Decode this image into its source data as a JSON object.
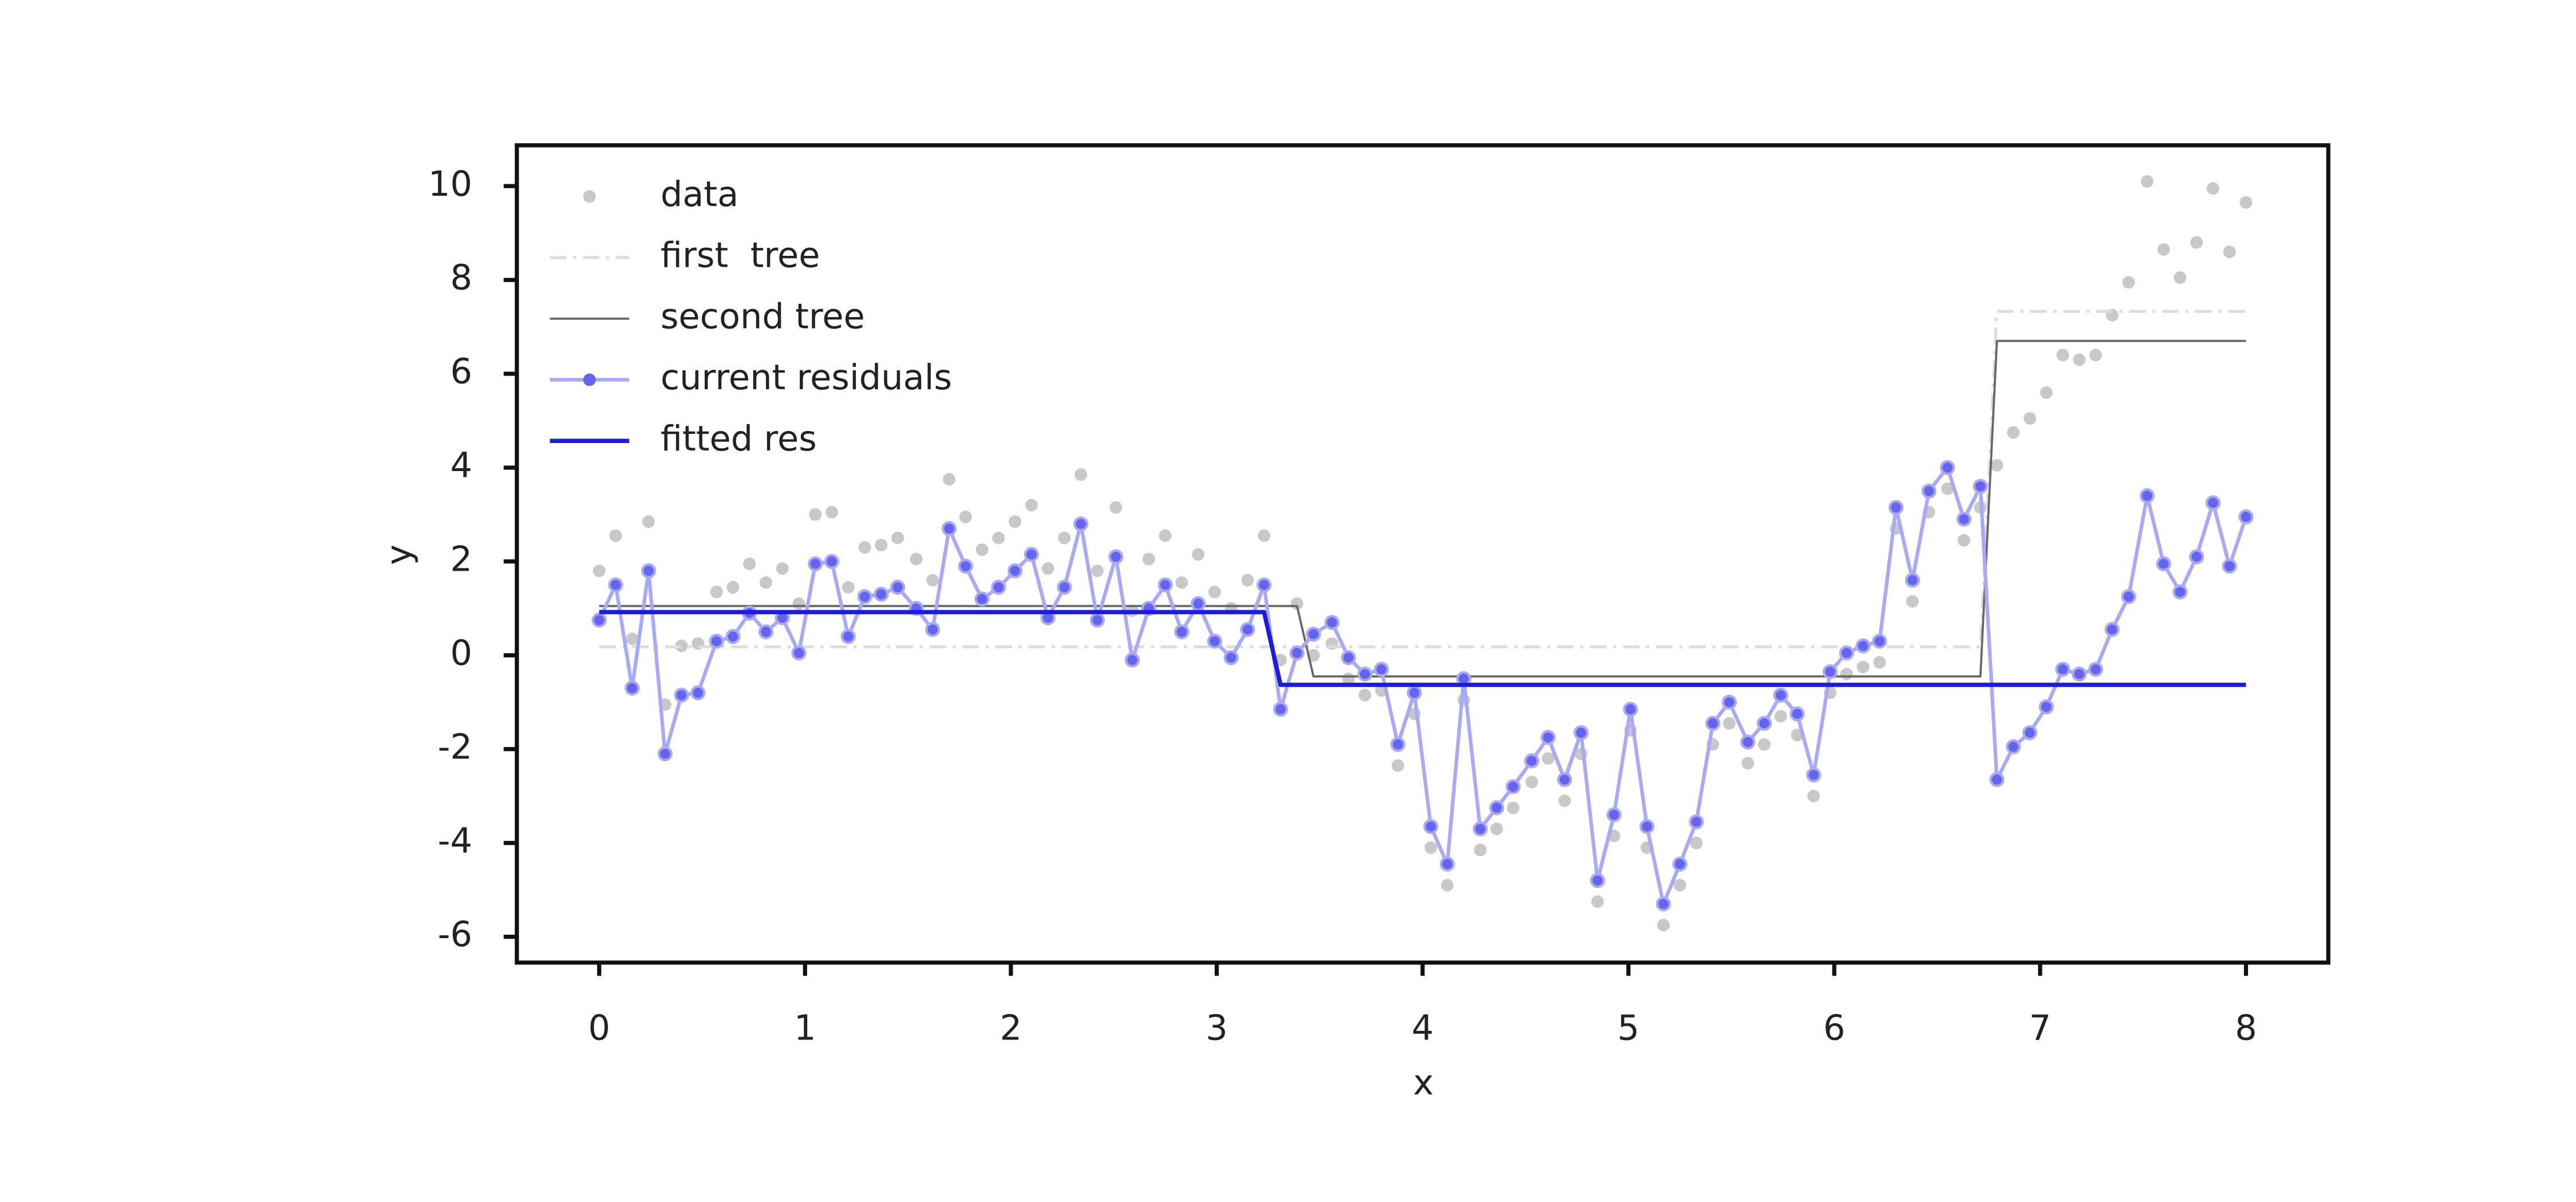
{
  "chart_data": {
    "type": "line",
    "xlabel": "x",
    "ylabel": "y",
    "xlim": [
      -0.4,
      8.4
    ],
    "ylim": [
      -6.55,
      10.87
    ],
    "xticks": [
      0,
      1,
      2,
      3,
      4,
      5,
      6,
      7,
      8
    ],
    "yticks": [
      -6,
      -4,
      -2,
      0,
      2,
      4,
      6,
      8,
      10
    ],
    "legend": "upper left",
    "series": [
      {
        "name": "data",
        "color": "#c8c8c8",
        "style": "markers",
        "x": [
          0,
          0.08,
          0.16,
          0.24,
          0.32,
          0.4,
          0.48,
          0.57,
          0.65,
          0.73,
          0.81,
          0.89,
          0.97,
          1.05,
          1.13,
          1.21,
          1.29,
          1.37,
          1.45,
          1.54,
          1.62,
          1.7,
          1.78,
          1.86,
          1.94,
          2.02,
          2.1,
          2.18,
          2.26,
          2.34,
          2.42,
          2.51,
          2.59,
          2.67,
          2.75,
          2.83,
          2.91,
          2.99,
          3.07,
          3.15,
          3.23,
          3.31,
          3.39,
          3.47,
          3.56,
          3.64,
          3.72,
          3.8,
          3.88,
          3.96,
          4.04,
          4.12,
          4.2,
          4.28,
          4.36,
          4.44,
          4.53,
          4.61,
          4.69,
          4.77,
          4.85,
          4.93,
          5.01,
          5.09,
          5.17,
          5.25,
          5.33,
          5.41,
          5.49,
          5.58,
          5.66,
          5.74,
          5.82,
          5.9,
          5.98,
          6.06,
          6.14,
          6.22,
          6.3,
          6.38,
          6.46,
          6.55,
          6.63,
          6.71,
          6.79,
          6.87,
          6.95,
          7.03,
          7.11,
          7.19,
          7.27,
          7.35,
          7.43,
          7.52,
          7.6,
          7.68,
          7.76,
          7.84,
          7.92,
          8.0
        ],
        "values": [
          1.8,
          2.55,
          0.35,
          2.85,
          -1.05,
          0.2,
          0.25,
          1.35,
          1.45,
          1.95,
          1.55,
          1.85,
          1.1,
          3.0,
          3.05,
          1.45,
          2.3,
          2.35,
          2.5,
          2.05,
          1.6,
          3.75,
          2.95,
          2.25,
          2.5,
          2.85,
          3.2,
          1.85,
          2.5,
          3.85,
          1.8,
          3.15,
          0.95,
          2.05,
          2.55,
          1.55,
          2.15,
          1.35,
          1.0,
          1.6,
          2.55,
          -0.1,
          1.1,
          0.0,
          0.25,
          -0.5,
          -0.85,
          -0.75,
          -2.35,
          -1.25,
          -4.1,
          -4.9,
          -0.95,
          -4.15,
          -3.7,
          -3.25,
          -2.7,
          -2.2,
          -3.1,
          -2.1,
          -5.25,
          -3.85,
          -1.6,
          -4.1,
          -5.75,
          -4.9,
          -4.0,
          -1.9,
          -1.45,
          -2.3,
          -1.9,
          -1.3,
          -1.7,
          -3.0,
          -0.8,
          -0.4,
          -0.25,
          -0.15,
          2.7,
          1.15,
          3.05,
          3.55,
          2.45,
          3.15,
          4.05,
          4.75,
          5.05,
          5.6,
          6.4,
          6.3,
          6.4,
          7.25,
          7.95,
          10.1,
          8.65,
          8.05,
          8.8,
          9.95,
          8.6,
          9.65
        ]
      },
      {
        "name": "first  tree",
        "color": "#dcdcdc",
        "style": "dashdot",
        "x": [
          0,
          6.71,
          6.79,
          8
        ],
        "values": [
          0.18,
          0.18,
          7.33,
          7.33
        ]
      },
      {
        "name": "second tree",
        "color": "#666666",
        "style": "thin",
        "x": [
          0,
          3.39,
          3.47,
          6.71,
          6.79,
          8
        ],
        "values": [
          1.05,
          1.05,
          -0.45,
          -0.45,
          6.7,
          6.7
        ]
      },
      {
        "name": "current residuals",
        "color": "#a9a9f5",
        "marker_color": "#6464ee",
        "style": "line-markers",
        "x": [
          0,
          0.08,
          0.16,
          0.24,
          0.32,
          0.4,
          0.48,
          0.57,
          0.65,
          0.73,
          0.81,
          0.89,
          0.97,
          1.05,
          1.13,
          1.21,
          1.29,
          1.37,
          1.45,
          1.54,
          1.62,
          1.7,
          1.78,
          1.86,
          1.94,
          2.02,
          2.1,
          2.18,
          2.26,
          2.34,
          2.42,
          2.51,
          2.59,
          2.67,
          2.75,
          2.83,
          2.91,
          2.99,
          3.07,
          3.15,
          3.23,
          3.31,
          3.39,
          3.47,
          3.56,
          3.64,
          3.72,
          3.8,
          3.88,
          3.96,
          4.04,
          4.12,
          4.2,
          4.28,
          4.36,
          4.44,
          4.53,
          4.61,
          4.69,
          4.77,
          4.85,
          4.93,
          5.01,
          5.09,
          5.17,
          5.25,
          5.33,
          5.41,
          5.49,
          5.58,
          5.66,
          5.74,
          5.82,
          5.9,
          5.98,
          6.06,
          6.14,
          6.22,
          6.3,
          6.38,
          6.46,
          6.55,
          6.63,
          6.71,
          6.79,
          6.87,
          6.95,
          7.03,
          7.11,
          7.19,
          7.27,
          7.35,
          7.43,
          7.52,
          7.6,
          7.68,
          7.76,
          7.84,
          7.92,
          8.0
        ],
        "values": [
          0.75,
          1.5,
          -0.7,
          1.8,
          -2.1,
          -0.85,
          -0.8,
          0.3,
          0.4,
          0.9,
          0.5,
          0.8,
          0.05,
          1.95,
          2.0,
          0.4,
          1.25,
          1.3,
          1.45,
          1.0,
          0.55,
          2.7,
          1.9,
          1.2,
          1.45,
          1.8,
          2.15,
          0.8,
          1.45,
          2.8,
          0.75,
          2.1,
          -0.1,
          1.0,
          1.5,
          0.5,
          1.1,
          0.3,
          -0.05,
          0.55,
          1.5,
          -1.15,
          0.05,
          0.45,
          0.7,
          -0.05,
          -0.4,
          -0.3,
          -1.9,
          -0.8,
          -3.65,
          -4.45,
          -0.5,
          -3.7,
          -3.25,
          -2.8,
          -2.25,
          -1.75,
          -2.65,
          -1.65,
          -4.8,
          -3.4,
          -1.15,
          -3.65,
          -5.3,
          -4.45,
          -3.55,
          -1.45,
          -1.0,
          -1.85,
          -1.45,
          -0.85,
          -1.25,
          -2.55,
          -0.35,
          0.05,
          0.2,
          0.3,
          3.15,
          1.6,
          3.5,
          4.0,
          2.9,
          3.6,
          -2.65,
          -1.95,
          -1.65,
          -1.1,
          -0.3,
          -0.4,
          -0.3,
          0.55,
          1.25,
          3.4,
          1.95,
          1.35,
          2.1,
          3.25,
          1.9,
          2.95
        ]
      },
      {
        "name": "fitted res",
        "color": "#1c1cdc",
        "style": "thick",
        "x": [
          0,
          3.23,
          3.31,
          8
        ],
        "values": [
          0.92,
          0.92,
          -0.63,
          -0.63
        ]
      }
    ]
  }
}
